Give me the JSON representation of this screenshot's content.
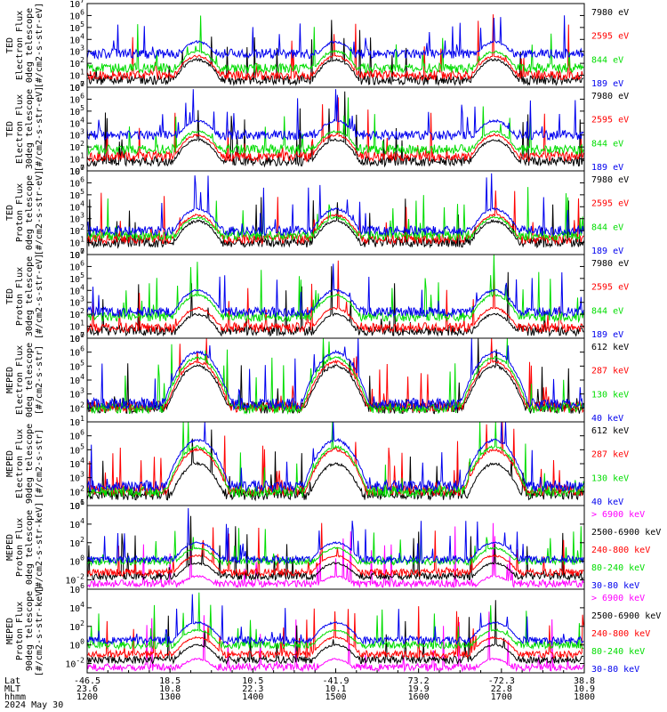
{
  "chart_data": {
    "type": "line",
    "title": "",
    "x_axis": {
      "rows": [
        {
          "label": "Lat",
          "ticks": [
            "-46.5",
            "18.5",
            "10.5",
            "-41.9",
            "73.2",
            "-72.3",
            "38.8"
          ]
        },
        {
          "label": "MLT",
          "ticks": [
            "23.6",
            "10.8",
            "22.3",
            "10.1",
            "19.9",
            "22.8",
            "10.9"
          ]
        },
        {
          "label": "hhmm",
          "ticks": [
            "1200",
            "1300",
            "1400",
            "1500",
            "1600",
            "1700",
            "1800"
          ]
        }
      ],
      "date_label": "2024 May 30",
      "range_hhmm": [
        "1200",
        "1800"
      ]
    },
    "panels": [
      {
        "ylabel_lines": [
          "TED",
          "Electron Flux",
          "0deg telescope",
          "[#/cm2-s-str-eV]"
        ],
        "ylog": [
          0,
          7
        ],
        "yticks": [
          {
            "base": "10",
            "exp": "7"
          },
          {
            "base": "10",
            "exp": "6"
          },
          {
            "base": "10",
            "exp": "5"
          },
          {
            "base": "10",
            "exp": "4"
          },
          {
            "base": "10",
            "exp": "3"
          },
          {
            "base": "10",
            "exp": "2"
          },
          {
            "base": "10",
            "exp": "1"
          },
          {
            "base": "10",
            "exp": "0"
          }
        ],
        "series": [
          {
            "name": "7980 eV",
            "color": "#000000",
            "baseline": 0.6,
            "peak": 2.3
          },
          {
            "name": "2595 eV",
            "color": "#ff0000",
            "baseline": 1.0,
            "peak": 2.6
          },
          {
            "name": "844 eV",
            "color": "#00dd00",
            "baseline": 1.6,
            "peak": 3.0
          },
          {
            "name": "189 eV",
            "color": "#0000ee",
            "baseline": 2.8,
            "peak": 3.8
          }
        ]
      },
      {
        "ylabel_lines": [
          "TED",
          "Electron Flux",
          "30deg telescope",
          "[#/cm2-s-str-eV]"
        ],
        "ylog": [
          0,
          7
        ],
        "yticks": [
          {
            "base": "10",
            "exp": "7"
          },
          {
            "base": "10",
            "exp": "6"
          },
          {
            "base": "10",
            "exp": "5"
          },
          {
            "base": "10",
            "exp": "4"
          },
          {
            "base": "10",
            "exp": "3"
          },
          {
            "base": "10",
            "exp": "2"
          },
          {
            "base": "10",
            "exp": "1"
          },
          {
            "base": "10",
            "exp": "0"
          }
        ],
        "series": [
          {
            "name": "7980 eV",
            "color": "#000000",
            "baseline": 0.8,
            "peak": 2.6
          },
          {
            "name": "2595 eV",
            "color": "#ff0000",
            "baseline": 1.2,
            "peak": 3.0
          },
          {
            "name": "844 eV",
            "color": "#00dd00",
            "baseline": 1.8,
            "peak": 3.3
          },
          {
            "name": "189 eV",
            "color": "#0000ee",
            "baseline": 3.0,
            "peak": 4.2
          }
        ]
      },
      {
        "ylabel_lines": [
          "TED",
          "Proton Flux",
          "0deg telescope",
          "[#/cm2-s-str-eV]"
        ],
        "ylog": [
          0,
          7
        ],
        "yticks": [
          {
            "base": "10",
            "exp": "7"
          },
          {
            "base": "10",
            "exp": "6"
          },
          {
            "base": "10",
            "exp": "5"
          },
          {
            "base": "10",
            "exp": "4"
          },
          {
            "base": "10",
            "exp": "3"
          },
          {
            "base": "10",
            "exp": "2"
          },
          {
            "base": "10",
            "exp": "1"
          },
          {
            "base": "10",
            "exp": "0"
          }
        ],
        "series": [
          {
            "name": "7980 eV",
            "color": "#000000",
            "baseline": 1.0,
            "peak": 2.8
          },
          {
            "name": "2595 eV",
            "color": "#ff0000",
            "baseline": 1.3,
            "peak": 3.3
          },
          {
            "name": "844 eV",
            "color": "#00dd00",
            "baseline": 1.6,
            "peak": 3.1
          },
          {
            "name": "189 eV",
            "color": "#0000ee",
            "baseline": 2.0,
            "peak": 3.8
          }
        ]
      },
      {
        "ylabel_lines": [
          "TED",
          "Proton Flux",
          "30deg telescope",
          "[#/cm2-s-str-eV]"
        ],
        "ylog": [
          0,
          7
        ],
        "yticks": [
          {
            "base": "10",
            "exp": "7"
          },
          {
            "base": "10",
            "exp": "6"
          },
          {
            "base": "10",
            "exp": "5"
          },
          {
            "base": "10",
            "exp": "4"
          },
          {
            "base": "10",
            "exp": "3"
          },
          {
            "base": "10",
            "exp": "2"
          },
          {
            "base": "10",
            "exp": "1"
          },
          {
            "base": "10",
            "exp": "0"
          }
        ],
        "series": [
          {
            "name": "7980 eV",
            "color": "#000000",
            "baseline": 0.6,
            "peak": 2.0
          },
          {
            "name": "2595 eV",
            "color": "#ff0000",
            "baseline": 0.9,
            "peak": 2.5
          },
          {
            "name": "844 eV",
            "color": "#00dd00",
            "baseline": 1.8,
            "peak": 3.6
          },
          {
            "name": "189 eV",
            "color": "#0000ee",
            "baseline": 2.2,
            "peak": 4.0
          }
        ]
      },
      {
        "ylabel_lines": [
          "MEPED",
          "Electron Flux",
          "0deg telescope",
          "[#/cm2-s-str]"
        ],
        "ylog": [
          1,
          7
        ],
        "yticks": [
          {
            "base": "10",
            "exp": "7"
          },
          {
            "base": "10",
            "exp": "6"
          },
          {
            "base": "10",
            "exp": "5"
          },
          {
            "base": "10",
            "exp": "4"
          },
          {
            "base": "10",
            "exp": "3"
          },
          {
            "base": "10",
            "exp": "2"
          },
          {
            "base": "10",
            "exp": "1"
          }
        ],
        "series": [
          {
            "name": "612 keV",
            "color": "#000000",
            "baseline": 2.0,
            "peak": 5.0
          },
          {
            "name": "287 keV",
            "color": "#ff0000",
            "baseline": 2.1,
            "peak": 5.3
          },
          {
            "name": "130 keV",
            "color": "#00dd00",
            "baseline": 2.0,
            "peak": 5.6
          },
          {
            "name": "40 keV",
            "color": "#0000ee",
            "baseline": 2.3,
            "peak": 6.0
          }
        ]
      },
      {
        "ylabel_lines": [
          "MEPED",
          "Electron Flux",
          "90deg telescope",
          "[#/cm2-s-str]"
        ],
        "ylog": [
          1,
          7
        ],
        "yticks": [
          {
            "base": "10",
            "exp": "6"
          },
          {
            "base": "10",
            "exp": "5"
          },
          {
            "base": "10",
            "exp": "4"
          },
          {
            "base": "10",
            "exp": "3"
          },
          {
            "base": "10",
            "exp": "2"
          },
          {
            "base": "10",
            "exp": "1"
          }
        ],
        "series": [
          {
            "name": "612 keV",
            "color": "#000000",
            "baseline": 1.8,
            "peak": 4.0
          },
          {
            "name": "287 keV",
            "color": "#ff0000",
            "baseline": 2.1,
            "peak": 5.0
          },
          {
            "name": "130 keV",
            "color": "#00dd00",
            "baseline": 2.0,
            "peak": 5.2
          },
          {
            "name": "40 keV",
            "color": "#0000ee",
            "baseline": 2.4,
            "peak": 5.7
          }
        ]
      },
      {
        "ylabel_lines": [
          "MEPED",
          "Proton Flux",
          "0deg telescope",
          "[#/cm2-s-str-keV]"
        ],
        "ylog": [
          -3,
          6
        ],
        "yticks": [
          {
            "base": "10",
            "exp": "6"
          },
          {
            "base": "10",
            "exp": "4"
          },
          {
            "base": "10",
            "exp": "2"
          },
          {
            "base": "10",
            "exp": "0"
          },
          {
            "base": "10",
            "exp": "-2"
          }
        ],
        "series": [
          {
            "name": "> 6900 keV",
            "color": "#ff00ff",
            "baseline": -2.4,
            "peak": -1.6
          },
          {
            "name": "2500-6900 keV",
            "color": "#000000",
            "baseline": -1.6,
            "peak": -0.2
          },
          {
            "name": "240-800 keV",
            "color": "#ff0000",
            "baseline": -1.2,
            "peak": 0.6
          },
          {
            "name": "80-240 keV",
            "color": "#00dd00",
            "baseline": 0.0,
            "peak": 1.4
          },
          {
            "name": "30-80 keV",
            "color": "#0000ee",
            "baseline": 0.2,
            "peak": 2.0
          }
        ]
      },
      {
        "ylabel_lines": [
          "MEPED",
          "Proton Flux",
          "90deg telescope",
          "[#/cm2-s-str-keV]"
        ],
        "ylog": [
          -3,
          6
        ],
        "yticks": [
          {
            "base": "10",
            "exp": "6"
          },
          {
            "base": "10",
            "exp": "4"
          },
          {
            "base": "10",
            "exp": "2"
          },
          {
            "base": "10",
            "exp": "0"
          },
          {
            "base": "10",
            "exp": "-2"
          }
        ],
        "series": [
          {
            "name": "> 6900 keV",
            "color": "#ff00ff",
            "baseline": -2.4,
            "peak": -1.5
          },
          {
            "name": "2500-6900 keV",
            "color": "#000000",
            "baseline": -1.6,
            "peak": 0.0
          },
          {
            "name": "240-800 keV",
            "color": "#ff0000",
            "baseline": -1.0,
            "peak": 0.8
          },
          {
            "name": "80-240 keV",
            "color": "#00dd00",
            "baseline": 0.0,
            "peak": 1.6
          },
          {
            "name": "30-80 keV",
            "color": "#0000ee",
            "baseline": 0.5,
            "peak": 2.4
          }
        ]
      }
    ],
    "events_hhmm": [
      "1320",
      "1500",
      "1655"
    ],
    "grid": false
  }
}
